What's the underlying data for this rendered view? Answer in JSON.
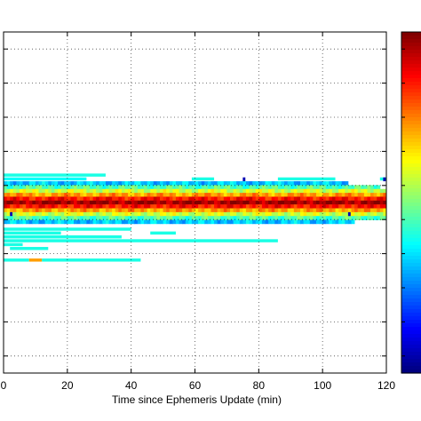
{
  "chart_data": {
    "type": "heatmap",
    "xlabel": "Time since Ephemeris Update (min)",
    "xlim": [
      0,
      120
    ],
    "x_ticks": [
      "0",
      "20",
      "40",
      "60",
      "80",
      "100",
      "120"
    ],
    "y_tick_count": 10,
    "grid": true,
    "colorbar": {
      "colormap": "jet",
      "placement": "right",
      "tick_count": 10
    },
    "x_bin_min": 1,
    "main_band": {
      "description_values": "dense band centered on the zero-error row",
      "center_row": 0,
      "rows": [
        -5,
        -4,
        -3,
        -2,
        -1,
        0,
        1,
        2,
        3,
        4,
        5
      ],
      "row_intensity": [
        0.32,
        0.45,
        0.58,
        0.72,
        0.86,
        0.97,
        0.86,
        0.72,
        0.58,
        0.45,
        0.32
      ],
      "row_extent_min": [
        108,
        118,
        120,
        120,
        120,
        120,
        120,
        120,
        120,
        120,
        110
      ]
    },
    "scattered_bins": [
      {
        "row": -7,
        "x_start": 0,
        "x_end": 32,
        "value": 0.4
      },
      {
        "row": -6,
        "x_start": 0,
        "x_end": 26,
        "value": 0.38
      },
      {
        "row": -6,
        "x_start": 59,
        "x_end": 66,
        "value": 0.4
      },
      {
        "row": -6,
        "x_start": 86,
        "x_end": 104,
        "value": 0.4
      },
      {
        "row": -6,
        "x_start": 118,
        "x_end": 120,
        "value": 0.4
      },
      {
        "row": 7,
        "x_start": 0,
        "x_end": 40,
        "value": 0.4
      },
      {
        "row": 8,
        "x_start": 0,
        "x_end": 18,
        "value": 0.4
      },
      {
        "row": 8,
        "x_start": 46,
        "x_end": 54,
        "value": 0.4
      },
      {
        "row": 9,
        "x_start": 0,
        "x_end": 37,
        "value": 0.4
      },
      {
        "row": 10,
        "x_start": 0,
        "x_end": 86,
        "value": 0.4
      },
      {
        "row": 11,
        "x_start": 0,
        "x_end": 6,
        "value": 0.4
      },
      {
        "row": 12,
        "x_start": 2,
        "x_end": 14,
        "value": 0.4
      },
      {
        "row": 15,
        "x_start": 0,
        "x_end": 8,
        "value": 0.4
      },
      {
        "row": 15,
        "x_start": 12,
        "x_end": 43,
        "value": 0.4
      },
      {
        "row": 15,
        "x_start": 8,
        "x_end": 12,
        "value": 0.72
      }
    ],
    "hot_cells": [
      {
        "row": -6,
        "x": 75,
        "value": 0.05
      },
      {
        "row": -6,
        "x": 119,
        "value": 0.05
      },
      {
        "row": 3,
        "x": 2,
        "value": 0.05
      },
      {
        "row": 3,
        "x": 108,
        "value": 0.05
      }
    ]
  }
}
